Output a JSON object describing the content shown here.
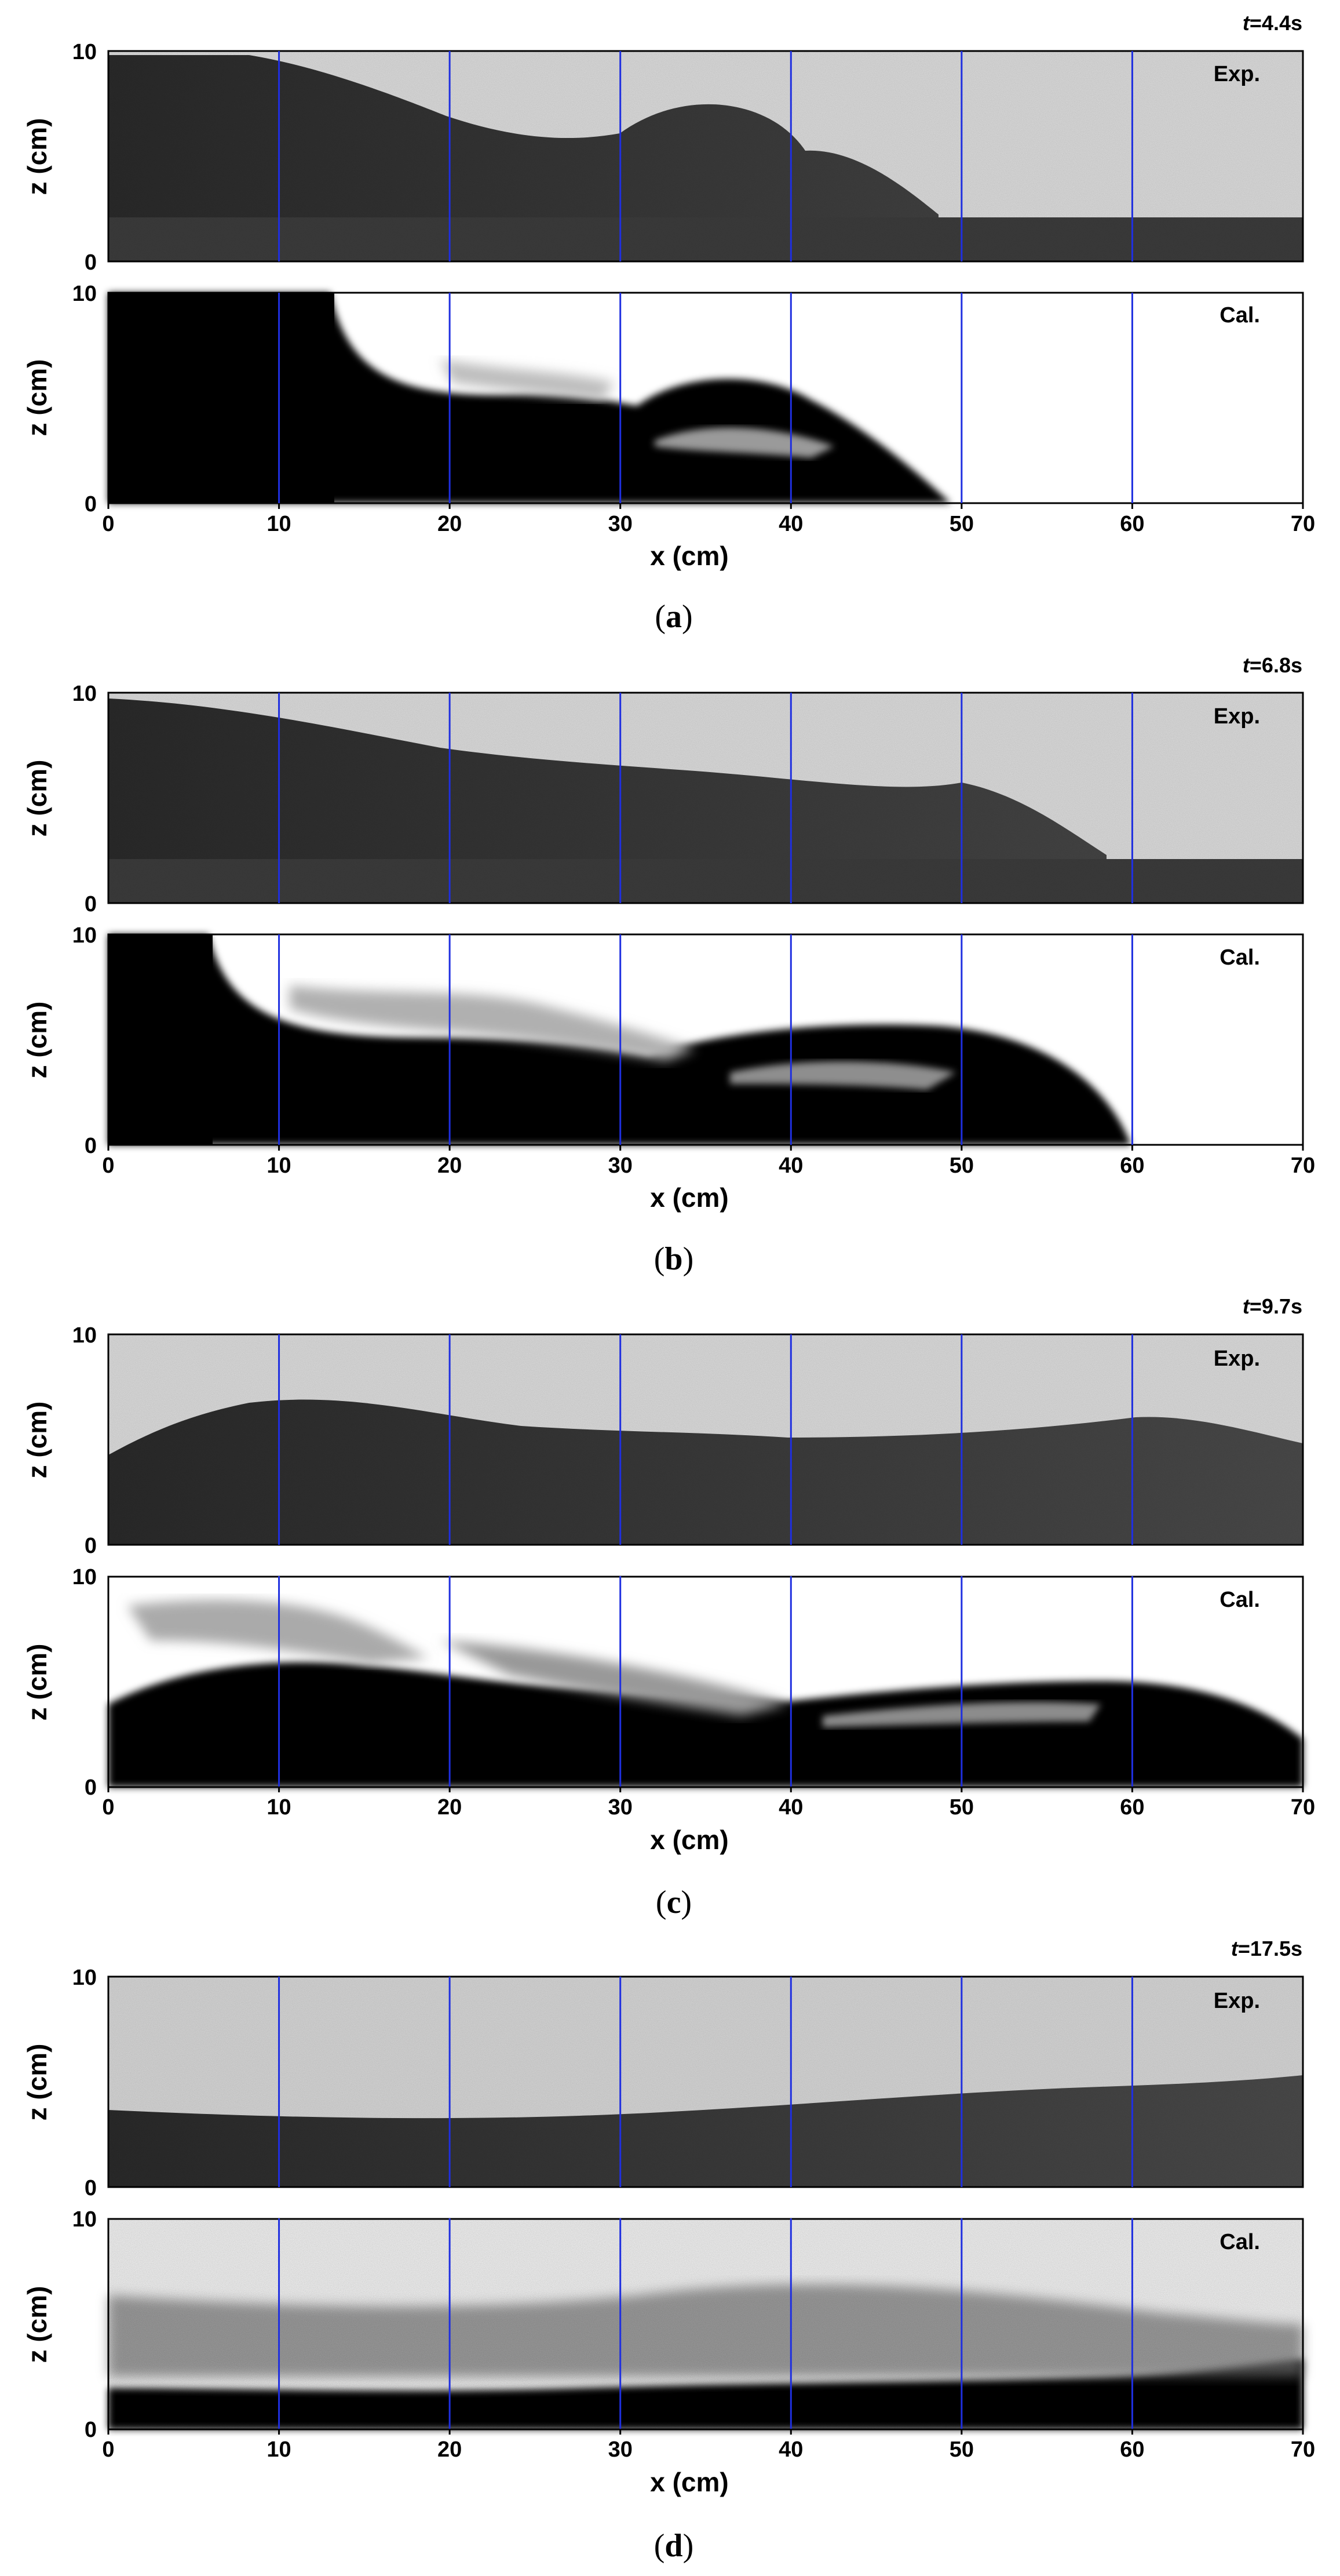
{
  "figure": {
    "axis_colors": {
      "gridline": "#1f2fe0",
      "frame": "#000000"
    },
    "chart_data": [
      {
        "type": "image-comparison",
        "panel": "a",
        "caption": "a",
        "time_label": {
          "prefix": "t",
          "value": "=4.4s"
        },
        "xlabel": "x (cm)",
        "ylabel": "z (cm)",
        "xlim": [
          0,
          70
        ],
        "zlim": [
          0,
          10
        ],
        "x_ticks": [
          "0",
          "10",
          "20",
          "30",
          "40",
          "50",
          "60",
          "70"
        ],
        "z_ticks": [
          "0",
          "10"
        ],
        "gridlines_x": [
          10,
          20,
          30,
          40,
          50,
          60
        ],
        "exp_label": "Exp.",
        "cal_label": "Cal.",
        "front_x": 50,
        "current_height": 10
      },
      {
        "type": "image-comparison",
        "panel": "b",
        "caption": "b",
        "time_label": {
          "prefix": "t",
          "value": "=6.8s"
        },
        "xlabel": "x (cm)",
        "ylabel": "z (cm)",
        "xlim": [
          0,
          70
        ],
        "zlim": [
          0,
          10
        ],
        "x_ticks": [
          "0",
          "10",
          "20",
          "30",
          "40",
          "50",
          "60",
          "70"
        ],
        "z_ticks": [
          "0",
          "10"
        ],
        "gridlines_x": [
          10,
          20,
          30,
          40,
          50,
          60
        ],
        "exp_label": "Exp.",
        "cal_label": "Cal.",
        "front_x": 60,
        "current_height": 8
      },
      {
        "type": "image-comparison",
        "panel": "c",
        "caption": "c",
        "time_label": {
          "prefix": "t",
          "value": "=9.7s"
        },
        "xlabel": "x (cm)",
        "ylabel": "z (cm)",
        "xlim": [
          0,
          70
        ],
        "zlim": [
          0,
          10
        ],
        "x_ticks": [
          "0",
          "10",
          "20",
          "30",
          "40",
          "50",
          "60",
          "70"
        ],
        "z_ticks": [
          "0",
          "10"
        ],
        "gridlines_x": [
          10,
          20,
          30,
          40,
          50,
          60
        ],
        "exp_label": "Exp.",
        "cal_label": "Cal.",
        "front_x": 70,
        "current_height": 5
      },
      {
        "type": "image-comparison",
        "panel": "d",
        "caption": "d",
        "time_label": {
          "prefix": "t",
          "value": "=17.5s"
        },
        "xlabel": "x (cm)",
        "ylabel": "z (cm)",
        "xlim": [
          0,
          70
        ],
        "zlim": [
          0,
          10
        ],
        "x_ticks": [
          "0",
          "10",
          "20",
          "30",
          "40",
          "50",
          "60",
          "70"
        ],
        "z_ticks": [
          "0",
          "10"
        ],
        "gridlines_x": [
          10,
          20,
          30,
          40,
          50,
          60
        ],
        "exp_label": "Exp.",
        "cal_label": "Cal.",
        "front_x": 70,
        "current_height": 4
      }
    ]
  }
}
